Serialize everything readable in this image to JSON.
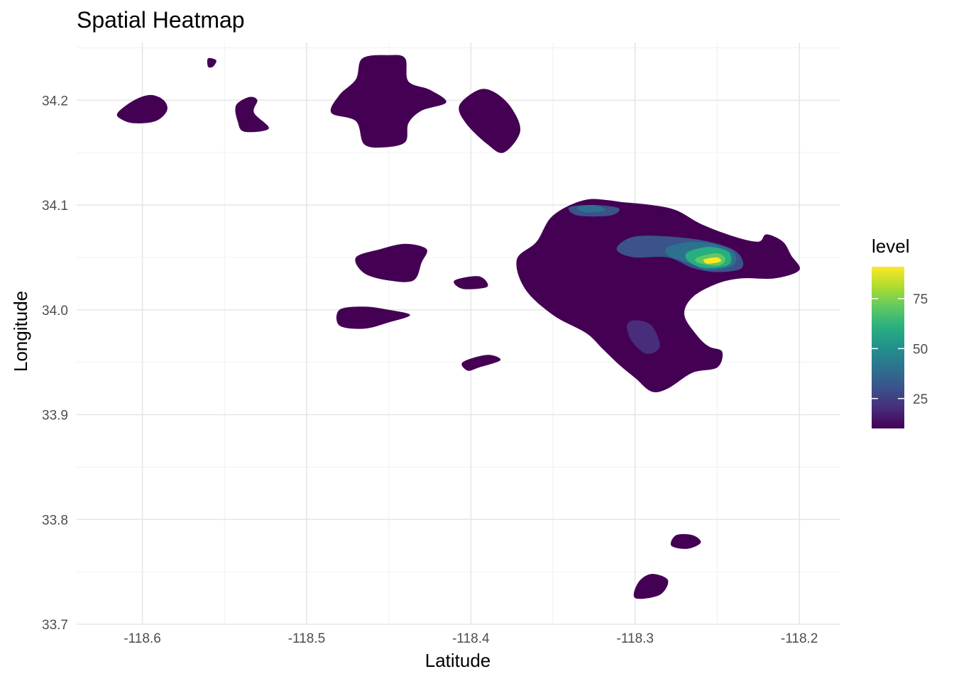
{
  "chart_data": {
    "type": "heatmap",
    "title": "Spatial Heatmap",
    "xlabel": "Latitude",
    "ylabel": "Longitude",
    "xlim": [
      -118.64,
      -118.175
    ],
    "ylim": [
      33.7,
      34.255
    ],
    "x_ticks": [
      -118.6,
      -118.5,
      -118.4,
      -118.3,
      -118.2
    ],
    "x_tick_labels": [
      "-118.6",
      "-118.5",
      "-118.4",
      "-118.3",
      "-118.2"
    ],
    "y_ticks": [
      33.7,
      33.8,
      33.9,
      34.0,
      34.1,
      34.2
    ],
    "y_tick_labels": [
      "33.7",
      "33.8",
      "33.9",
      "34.0",
      "34.1",
      "34.2"
    ],
    "grid": true,
    "legend": {
      "title": "level",
      "placement": "right",
      "range": [
        10,
        91
      ],
      "ticks": [
        25,
        50,
        75
      ],
      "tick_labels": [
        "25",
        "50",
        "75"
      ],
      "colormap": "viridis"
    },
    "colors": [
      "#440154",
      "#472d7b",
      "#3b528b",
      "#2c728e",
      "#21918c",
      "#28ae80",
      "#5ec962",
      "#addc30",
      "#fde725"
    ],
    "regions": [
      {
        "level": 10,
        "points": [
          [
            -118.615,
            34.188
          ],
          [
            -118.605,
            34.2
          ],
          [
            -118.595,
            34.205
          ],
          [
            -118.587,
            34.2
          ],
          [
            -118.585,
            34.19
          ],
          [
            -118.592,
            34.18
          ],
          [
            -118.605,
            34.178
          ],
          [
            -118.613,
            34.182
          ]
        ]
      },
      {
        "level": 10,
        "points": [
          [
            -118.56,
            34.24
          ],
          [
            -118.555,
            34.238
          ],
          [
            -118.557,
            34.232
          ],
          [
            -118.56,
            34.232
          ]
        ]
      },
      {
        "level": 10,
        "points": [
          [
            -118.543,
            34.195
          ],
          [
            -118.535,
            34.203
          ],
          [
            -118.53,
            34.2
          ],
          [
            -118.532,
            34.188
          ],
          [
            -118.523,
            34.173
          ],
          [
            -118.538,
            34.17
          ],
          [
            -118.542,
            34.18
          ]
        ]
      },
      {
        "level": 10,
        "points": [
          [
            -118.47,
            34.22
          ],
          [
            -118.466,
            34.24
          ],
          [
            -118.45,
            34.243
          ],
          [
            -118.44,
            34.24
          ],
          [
            -118.438,
            34.218
          ],
          [
            -118.425,
            34.21
          ],
          [
            -118.415,
            34.198
          ],
          [
            -118.43,
            34.19
          ],
          [
            -118.438,
            34.178
          ],
          [
            -118.44,
            34.16
          ],
          [
            -118.453,
            34.155
          ],
          [
            -118.465,
            34.158
          ],
          [
            -118.47,
            34.18
          ],
          [
            -118.485,
            34.188
          ],
          [
            -118.48,
            34.205
          ]
        ]
      },
      {
        "level": 10,
        "points": [
          [
            -118.407,
            34.195
          ],
          [
            -118.395,
            34.21
          ],
          [
            -118.385,
            34.207
          ],
          [
            -118.375,
            34.192
          ],
          [
            -118.37,
            34.17
          ],
          [
            -118.38,
            34.15
          ],
          [
            -118.39,
            34.158
          ],
          [
            -118.403,
            34.178
          ]
        ]
      },
      {
        "level": 10,
        "points": [
          [
            -118.383,
            34.165
          ],
          [
            -118.378,
            34.172
          ],
          [
            -118.372,
            34.168
          ],
          [
            -118.377,
            34.16
          ]
        ]
      },
      {
        "level": 10,
        "points": [
          [
            -118.47,
            34.05
          ],
          [
            -118.455,
            34.058
          ],
          [
            -118.44,
            34.063
          ],
          [
            -118.427,
            34.058
          ],
          [
            -118.43,
            34.045
          ],
          [
            -118.435,
            34.028
          ],
          [
            -118.45,
            34.028
          ],
          [
            -118.465,
            34.035
          ]
        ]
      },
      {
        "level": 10,
        "points": [
          [
            -118.41,
            34.028
          ],
          [
            -118.395,
            34.032
          ],
          [
            -118.39,
            34.022
          ],
          [
            -118.405,
            34.02
          ]
        ]
      },
      {
        "level": 10,
        "points": [
          [
            -118.48,
            34.0
          ],
          [
            -118.465,
            34.003
          ],
          [
            -118.45,
            34.0
          ],
          [
            -118.437,
            33.995
          ],
          [
            -118.45,
            33.988
          ],
          [
            -118.465,
            33.982
          ],
          [
            -118.48,
            33.985
          ]
        ]
      },
      {
        "level": 10,
        "points": [
          [
            -118.405,
            33.95
          ],
          [
            -118.39,
            33.957
          ],
          [
            -118.382,
            33.952
          ],
          [
            -118.395,
            33.945
          ],
          [
            -118.402,
            33.942
          ]
        ]
      },
      {
        "level": 10,
        "points": [
          [
            -118.275,
            33.785
          ],
          [
            -118.265,
            33.785
          ],
          [
            -118.26,
            33.778
          ],
          [
            -118.268,
            33.772
          ],
          [
            -118.278,
            33.775
          ]
        ]
      },
      {
        "level": 10,
        "points": [
          [
            -118.298,
            33.74
          ],
          [
            -118.29,
            33.748
          ],
          [
            -118.28,
            33.742
          ],
          [
            -118.285,
            33.728
          ],
          [
            -118.3,
            33.725
          ]
        ]
      },
      {
        "level": 10,
        "points": [
          [
            -118.36,
            34.065
          ],
          [
            -118.35,
            34.09
          ],
          [
            -118.33,
            34.105
          ],
          [
            -118.31,
            34.103
          ],
          [
            -118.29,
            34.1
          ],
          [
            -118.275,
            34.095
          ],
          [
            -118.26,
            34.082
          ],
          [
            -118.24,
            34.07
          ],
          [
            -118.225,
            34.065
          ],
          [
            -118.22,
            34.072
          ],
          [
            -118.21,
            34.065
          ],
          [
            -118.205,
            34.052
          ],
          [
            -118.2,
            34.038
          ],
          [
            -118.215,
            34.03
          ],
          [
            -118.235,
            34.03
          ],
          [
            -118.25,
            34.025
          ],
          [
            -118.265,
            34.012
          ],
          [
            -118.27,
            33.995
          ],
          [
            -118.262,
            33.975
          ],
          [
            -118.255,
            33.965
          ],
          [
            -118.247,
            33.96
          ],
          [
            -118.25,
            33.945
          ],
          [
            -118.265,
            33.94
          ],
          [
            -118.28,
            33.925
          ],
          [
            -118.29,
            33.922
          ],
          [
            -118.3,
            33.935
          ],
          [
            -118.31,
            33.948
          ],
          [
            -118.32,
            33.963
          ],
          [
            -118.33,
            33.978
          ],
          [
            -118.35,
            33.995
          ],
          [
            -118.367,
            34.02
          ],
          [
            -118.372,
            34.048
          ]
        ]
      },
      {
        "level": 15,
        "points": [
          [
            -118.34,
            34.07
          ],
          [
            -118.325,
            34.065
          ],
          [
            -118.33,
            34.05
          ],
          [
            -118.345,
            34.055
          ],
          [
            -118.345,
            34.065
          ]
        ]
      },
      {
        "level": 15,
        "points": [
          [
            -118.345,
            34.095
          ],
          [
            -118.325,
            34.105
          ],
          [
            -118.3,
            34.1
          ],
          [
            -118.285,
            34.09
          ],
          [
            -118.275,
            34.075
          ],
          [
            -118.258,
            34.065
          ],
          [
            -118.235,
            34.055
          ],
          [
            -118.228,
            34.04
          ],
          [
            -118.24,
            34.035
          ],
          [
            -118.26,
            34.03
          ],
          [
            -118.275,
            34.022
          ],
          [
            -118.28,
            33.995
          ],
          [
            -118.275,
            33.968
          ],
          [
            -118.28,
            33.94
          ],
          [
            -118.29,
            33.935
          ],
          [
            -118.3,
            33.955
          ],
          [
            -118.31,
            33.985
          ],
          [
            -118.315,
            34.005
          ],
          [
            -118.31,
            34.025
          ],
          [
            -118.315,
            34.045
          ],
          [
            -118.32,
            34.07
          ],
          [
            -118.34,
            34.085
          ]
        ]
      },
      {
        "level": 25,
        "points": [
          [
            -118.3,
            33.99
          ],
          [
            -118.29,
            33.985
          ],
          [
            -118.285,
            33.965
          ],
          [
            -118.293,
            33.958
          ],
          [
            -118.302,
            33.97
          ],
          [
            -118.305,
            33.985
          ]
        ]
      },
      {
        "level": 30,
        "points": [
          [
            -118.34,
            34.098
          ],
          [
            -118.325,
            34.1
          ],
          [
            -118.31,
            34.097
          ],
          [
            -118.315,
            34.09
          ],
          [
            -118.335,
            34.09
          ]
        ]
      },
      {
        "level": 30,
        "points": [
          [
            -118.31,
            34.062
          ],
          [
            -118.3,
            34.07
          ],
          [
            -118.28,
            34.07
          ],
          [
            -118.255,
            34.065
          ],
          [
            -118.238,
            34.055
          ],
          [
            -118.235,
            34.04
          ],
          [
            -118.25,
            34.036
          ],
          [
            -118.265,
            34.04
          ],
          [
            -118.28,
            34.05
          ],
          [
            -118.3,
            34.05
          ],
          [
            -118.31,
            34.055
          ]
        ]
      },
      {
        "level": 40,
        "points": [
          [
            -118.335,
            34.098
          ],
          [
            -118.325,
            34.1
          ],
          [
            -118.318,
            34.095
          ],
          [
            -118.33,
            34.093
          ]
        ]
      },
      {
        "level": 45,
        "points": [
          [
            -118.28,
            34.06
          ],
          [
            -118.265,
            34.065
          ],
          [
            -118.25,
            34.062
          ],
          [
            -118.24,
            34.055
          ],
          [
            -118.24,
            34.043
          ],
          [
            -118.255,
            34.038
          ],
          [
            -118.268,
            34.045
          ],
          [
            -118.28,
            34.052
          ]
        ]
      },
      {
        "level": 60,
        "points": [
          [
            -118.268,
            34.055
          ],
          [
            -118.255,
            34.06
          ],
          [
            -118.243,
            34.055
          ],
          [
            -118.243,
            34.043
          ],
          [
            -118.258,
            34.04
          ],
          [
            -118.268,
            34.047
          ]
        ]
      },
      {
        "level": 75,
        "points": [
          [
            -118.262,
            34.05
          ],
          [
            -118.25,
            34.054
          ],
          [
            -118.245,
            34.048
          ],
          [
            -118.25,
            34.042
          ],
          [
            -118.262,
            34.045
          ]
        ]
      },
      {
        "level": 88,
        "points": [
          [
            -118.258,
            34.048
          ],
          [
            -118.25,
            34.05
          ],
          [
            -118.248,
            34.046
          ],
          [
            -118.256,
            34.044
          ]
        ]
      }
    ]
  }
}
